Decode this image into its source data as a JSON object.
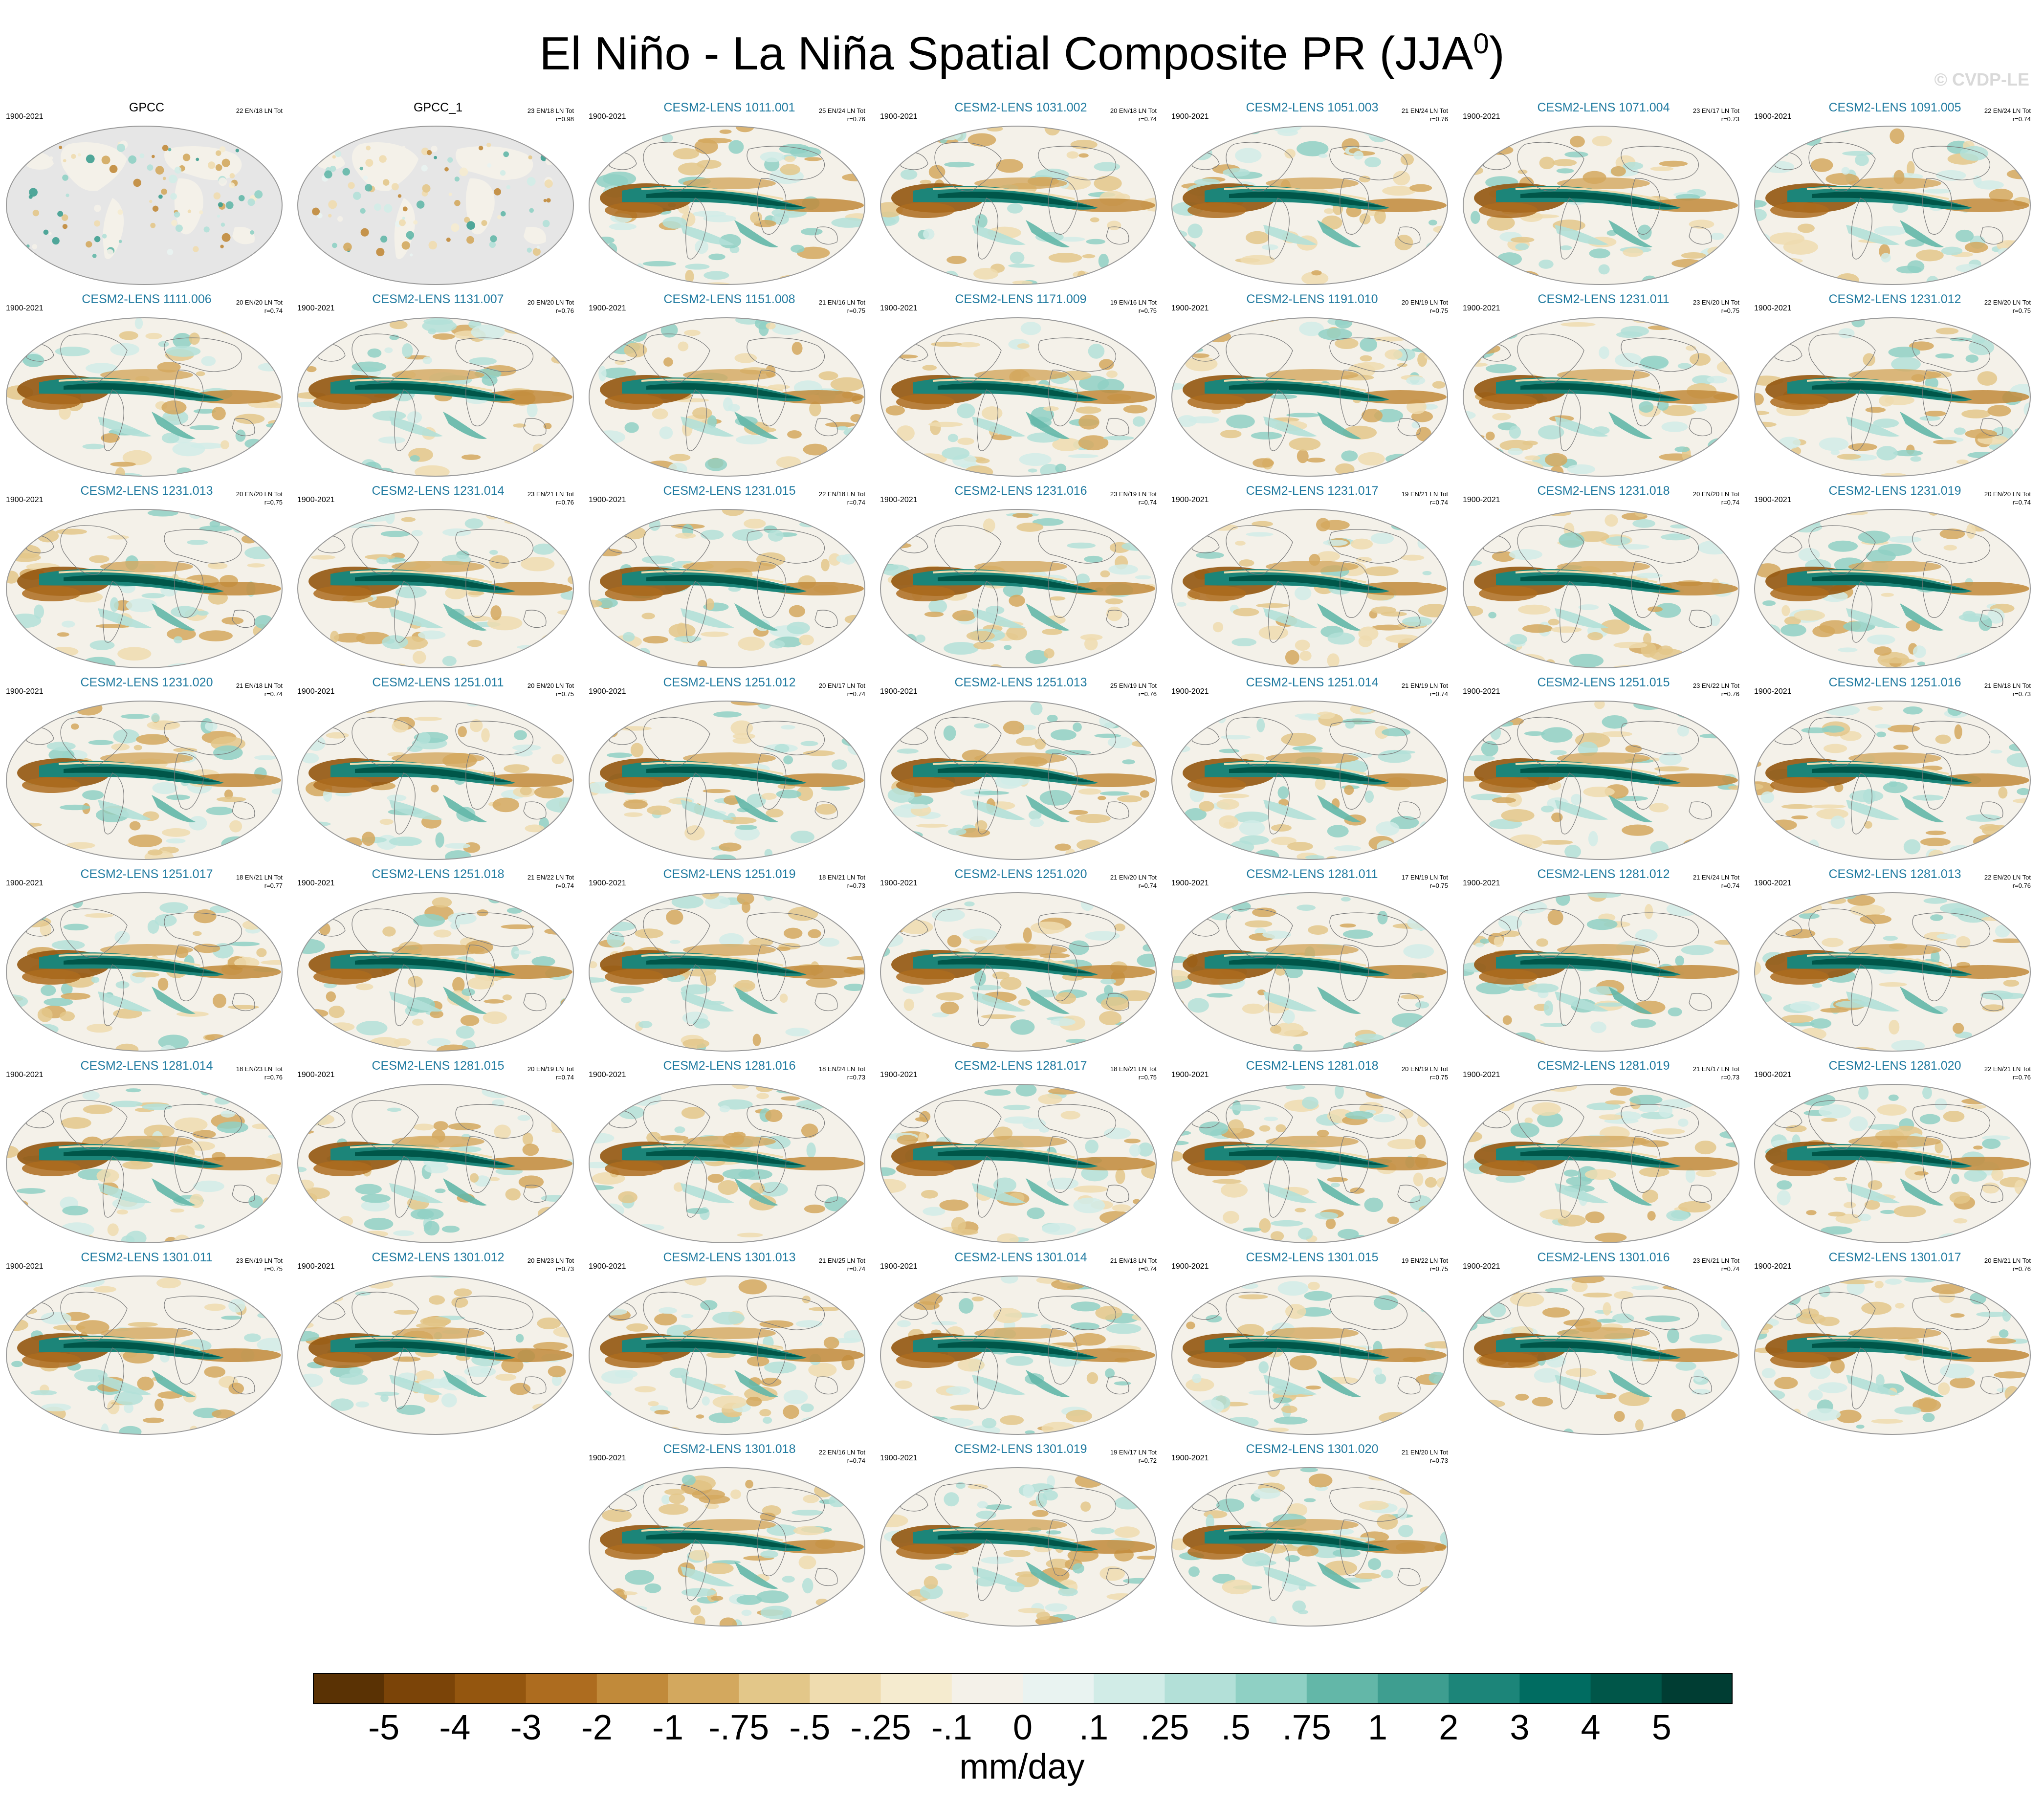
{
  "title": "El Niño - La Niña Spatial Composite PR (JJA",
  "title_superscript": "0",
  "title_suffix": ")",
  "watermark": "© CVDP-LE",
  "colors": {
    "ocean_gray": "#e6e6e6",
    "coast": "#7a7a7a",
    "model_title": "#1f7aa0"
  },
  "colorbar": {
    "units": "mm/day",
    "colors": [
      "#5a3204",
      "#7b4408",
      "#94560f",
      "#ad6c1f",
      "#c18a3a",
      "#d3a85e",
      "#e3c789",
      "#efdcaf",
      "#f5ebcf",
      "#f4f1e9",
      "#e9f3f1",
      "#d1ece7",
      "#b3e0d8",
      "#8fd0c4",
      "#63b7a8",
      "#3e9e90",
      "#1c8579",
      "#006c61",
      "#005649",
      "#003d33"
    ],
    "labels": [
      "-5",
      "-4",
      "-3",
      "-2",
      "-1",
      "-.75",
      "-.5",
      "-.25",
      "-.1",
      "0",
      ".1",
      ".25",
      ".5",
      ".75",
      "1",
      "2",
      "3",
      "4",
      "5"
    ]
  },
  "panels": [
    {
      "name": "GPCC",
      "period": "1900-2021",
      "counts": "22 EN/18 LN Tot",
      "corr": "",
      "obs": true
    },
    {
      "name": "GPCC_1",
      "period": "",
      "counts": "23 EN/18 LN Tot",
      "corr": "r=0.98",
      "obs": true
    },
    {
      "name": "CESM2-LENS 1011.001",
      "period": "1900-2021",
      "counts": "25 EN/24 LN Tot",
      "corr": "r=0.76"
    },
    {
      "name": "CESM2-LENS 1031.002",
      "period": "1900-2021",
      "counts": "20 EN/18 LN Tot",
      "corr": "r=0.74"
    },
    {
      "name": "CESM2-LENS 1051.003",
      "period": "1900-2021",
      "counts": "21 EN/24 LN Tot",
      "corr": "r=0.76"
    },
    {
      "name": "CESM2-LENS 1071.004",
      "period": "1900-2021",
      "counts": "23 EN/17 LN Tot",
      "corr": "r=0.73"
    },
    {
      "name": "CESM2-LENS 1091.005",
      "period": "1900-2021",
      "counts": "22 EN/24 LN Tot",
      "corr": "r=0.74"
    },
    {
      "name": "CESM2-LENS 1111.006",
      "period": "1900-2021",
      "counts": "20 EN/20 LN Tot",
      "corr": "r=0.74"
    },
    {
      "name": "CESM2-LENS 1131.007",
      "period": "1900-2021",
      "counts": "20 EN/20 LN Tot",
      "corr": "r=0.76"
    },
    {
      "name": "CESM2-LENS 1151.008",
      "period": "1900-2021",
      "counts": "21 EN/16 LN Tot",
      "corr": "r=0.75"
    },
    {
      "name": "CESM2-LENS 1171.009",
      "period": "1900-2021",
      "counts": "19 EN/16 LN Tot",
      "corr": "r=0.75"
    },
    {
      "name": "CESM2-LENS 1191.010",
      "period": "1900-2021",
      "counts": "20 EN/19 LN Tot",
      "corr": "r=0.75"
    },
    {
      "name": "CESM2-LENS 1231.011",
      "period": "1900-2021",
      "counts": "23 EN/20 LN Tot",
      "corr": "r=0.75"
    },
    {
      "name": "CESM2-LENS 1231.012",
      "period": "1900-2021",
      "counts": "22 EN/20 LN Tot",
      "corr": "r=0.75"
    },
    {
      "name": "CESM2-LENS 1231.013",
      "period": "1900-2021",
      "counts": "20 EN/20 LN Tot",
      "corr": "r=0.75"
    },
    {
      "name": "CESM2-LENS 1231.014",
      "period": "1900-2021",
      "counts": "23 EN/21 LN Tot",
      "corr": "r=0.76"
    },
    {
      "name": "CESM2-LENS 1231.015",
      "period": "1900-2021",
      "counts": "22 EN/18 LN Tot",
      "corr": "r=0.74"
    },
    {
      "name": "CESM2-LENS 1231.016",
      "period": "1900-2021",
      "counts": "23 EN/19 LN Tot",
      "corr": "r=0.74"
    },
    {
      "name": "CESM2-LENS 1231.017",
      "period": "1900-2021",
      "counts": "19 EN/21 LN Tot",
      "corr": "r=0.74"
    },
    {
      "name": "CESM2-LENS 1231.018",
      "period": "1900-2021",
      "counts": "20 EN/20 LN Tot",
      "corr": "r=0.74"
    },
    {
      "name": "CESM2-LENS 1231.019",
      "period": "1900-2021",
      "counts": "20 EN/20 LN Tot",
      "corr": "r=0.74"
    },
    {
      "name": "CESM2-LENS 1231.020",
      "period": "1900-2021",
      "counts": "21 EN/18 LN Tot",
      "corr": "r=0.74"
    },
    {
      "name": "CESM2-LENS 1251.011",
      "period": "1900-2021",
      "counts": "20 EN/20 LN Tot",
      "corr": "r=0.75"
    },
    {
      "name": "CESM2-LENS 1251.012",
      "period": "1900-2021",
      "counts": "20 EN/17 LN Tot",
      "corr": "r=0.74"
    },
    {
      "name": "CESM2-LENS 1251.013",
      "period": "1900-2021",
      "counts": "25 EN/19 LN Tot",
      "corr": "r=0.76"
    },
    {
      "name": "CESM2-LENS 1251.014",
      "period": "1900-2021",
      "counts": "21 EN/19 LN Tot",
      "corr": "r=0.74"
    },
    {
      "name": "CESM2-LENS 1251.015",
      "period": "1900-2021",
      "counts": "23 EN/22 LN Tot",
      "corr": "r=0.76"
    },
    {
      "name": "CESM2-LENS 1251.016",
      "period": "1900-2021",
      "counts": "21 EN/18 LN Tot",
      "corr": "r=0.73"
    },
    {
      "name": "CESM2-LENS 1251.017",
      "period": "1900-2021",
      "counts": "18 EN/21 LN Tot",
      "corr": "r=0.77"
    },
    {
      "name": "CESM2-LENS 1251.018",
      "period": "1900-2021",
      "counts": "21 EN/22 LN Tot",
      "corr": "r=0.74"
    },
    {
      "name": "CESM2-LENS 1251.019",
      "period": "1900-2021",
      "counts": "18 EN/21 LN Tot",
      "corr": "r=0.73"
    },
    {
      "name": "CESM2-LENS 1251.020",
      "period": "1900-2021",
      "counts": "21 EN/20 LN Tot",
      "corr": "r=0.74"
    },
    {
      "name": "CESM2-LENS 1281.011",
      "period": "1900-2021",
      "counts": "17 EN/19 LN Tot",
      "corr": "r=0.75"
    },
    {
      "name": "CESM2-LENS 1281.012",
      "period": "1900-2021",
      "counts": "21 EN/24 LN Tot",
      "corr": "r=0.74"
    },
    {
      "name": "CESM2-LENS 1281.013",
      "period": "1900-2021",
      "counts": "22 EN/20 LN Tot",
      "corr": "r=0.76"
    },
    {
      "name": "CESM2-LENS 1281.014",
      "period": "1900-2021",
      "counts": "18 EN/23 LN Tot",
      "corr": "r=0.76"
    },
    {
      "name": "CESM2-LENS 1281.015",
      "period": "1900-2021",
      "counts": "20 EN/19 LN Tot",
      "corr": "r=0.74"
    },
    {
      "name": "CESM2-LENS 1281.016",
      "period": "1900-2021",
      "counts": "18 EN/24 LN Tot",
      "corr": "r=0.73"
    },
    {
      "name": "CESM2-LENS 1281.017",
      "period": "1900-2021",
      "counts": "18 EN/21 LN Tot",
      "corr": "r=0.75"
    },
    {
      "name": "CESM2-LENS 1281.018",
      "period": "1900-2021",
      "counts": "20 EN/19 LN Tot",
      "corr": "r=0.75"
    },
    {
      "name": "CESM2-LENS 1281.019",
      "period": "1900-2021",
      "counts": "21 EN/17 LN Tot",
      "corr": "r=0.73"
    },
    {
      "name": "CESM2-LENS 1281.020",
      "period": "1900-2021",
      "counts": "22 EN/21 LN Tot",
      "corr": "r=0.76"
    },
    {
      "name": "CESM2-LENS 1301.011",
      "period": "1900-2021",
      "counts": "23 EN/19 LN Tot",
      "corr": "r=0.75"
    },
    {
      "name": "CESM2-LENS 1301.012",
      "period": "1900-2021",
      "counts": "20 EN/23 LN Tot",
      "corr": "r=0.73"
    },
    {
      "name": "CESM2-LENS 1301.013",
      "period": "1900-2021",
      "counts": "21 EN/25 LN Tot",
      "corr": "r=0.74"
    },
    {
      "name": "CESM2-LENS 1301.014",
      "period": "1900-2021",
      "counts": "21 EN/18 LN Tot",
      "corr": "r=0.74"
    },
    {
      "name": "CESM2-LENS 1301.015",
      "period": "1900-2021",
      "counts": "19 EN/22 LN Tot",
      "corr": "r=0.75"
    },
    {
      "name": "CESM2-LENS 1301.016",
      "period": "1900-2021",
      "counts": "23 EN/21 LN Tot",
      "corr": "r=0.74"
    },
    {
      "name": "CESM2-LENS 1301.017",
      "period": "1900-2021",
      "counts": "20 EN/21 LN Tot",
      "corr": "r=0.76"
    },
    {
      "name": "CESM2-LENS 1301.018",
      "period": "1900-2021",
      "counts": "22 EN/16 LN Tot",
      "corr": "r=0.74"
    },
    {
      "name": "CESM2-LENS 1301.019",
      "period": "1900-2021",
      "counts": "19 EN/17 LN Tot",
      "corr": "r=0.72"
    },
    {
      "name": "CESM2-LENS 1301.020",
      "period": "1900-2021",
      "counts": "21 EN/20 LN Tot",
      "corr": "r=0.73"
    }
  ]
}
